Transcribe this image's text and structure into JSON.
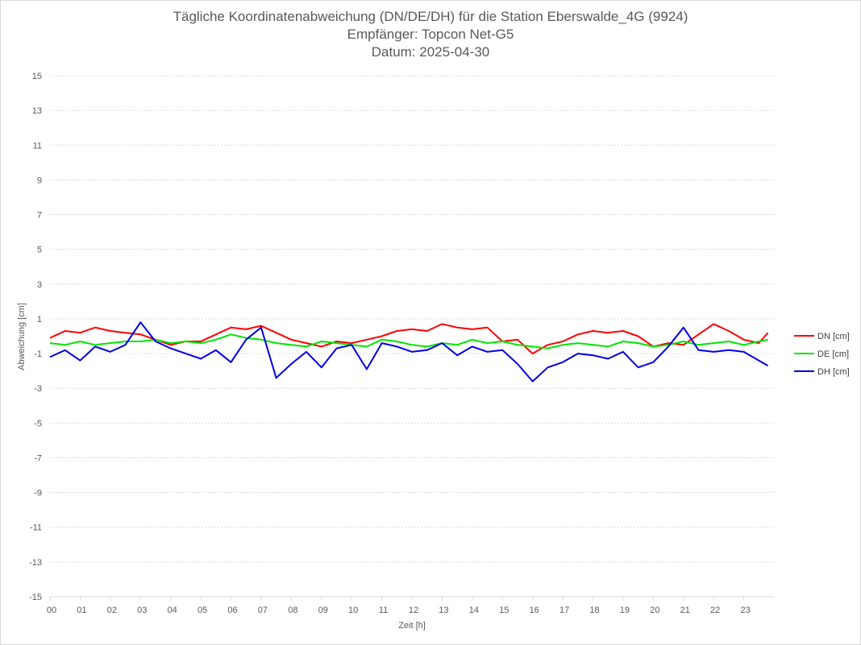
{
  "chart_data": {
    "type": "line",
    "title": "Tägliche Koordinatenabweichung (DN/DE/DH) für die Station Eberswalde_4G (9924)",
    "subtitle_lines": [
      "Empfänger: Topcon Net-G5",
      "Datum: 2025-04-30"
    ],
    "xlabel": "Zeit [h]",
    "ylabel": "Abweichung [cm]",
    "ylim": [
      -15,
      15
    ],
    "xlim": [
      0,
      24
    ],
    "grid": "horizontal dotted",
    "legend_position": "right",
    "x_tick_labels": [
      "00",
      "01",
      "02",
      "03",
      "04",
      "05",
      "06",
      "07",
      "08",
      "09",
      "10",
      "11",
      "12",
      "13",
      "14",
      "15",
      "16",
      "17",
      "18",
      "19",
      "20",
      "21",
      "22",
      "23"
    ],
    "y_tick_labels": [
      "15",
      "13",
      "11",
      "9",
      "7",
      "5",
      "3",
      "1",
      "-1",
      "-3",
      "-5",
      "-7",
      "-9",
      "-11",
      "-13",
      "-15"
    ],
    "series": [
      {
        "name": "DN [cm]",
        "color": "#ff0000",
        "x": [
          0,
          0.5,
          1,
          1.5,
          2,
          2.5,
          3,
          3.5,
          4,
          4.5,
          5,
          5.5,
          6,
          6.5,
          7,
          7.5,
          8,
          8.5,
          9,
          9.5,
          10,
          10.5,
          11,
          11.5,
          12,
          12.5,
          13,
          13.5,
          14,
          14.5,
          15,
          15.5,
          16,
          16.5,
          17,
          17.5,
          18,
          18.5,
          19,
          19.5,
          20,
          20.5,
          21,
          21.5,
          22,
          22.5,
          23,
          23.5,
          23.8
        ],
        "values": [
          -0.1,
          0.3,
          0.2,
          0.5,
          0.3,
          0.2,
          0.1,
          -0.2,
          -0.5,
          -0.3,
          -0.3,
          0.1,
          0.5,
          0.4,
          0.6,
          0.2,
          -0.2,
          -0.4,
          -0.6,
          -0.3,
          -0.4,
          -0.2,
          0.0,
          0.3,
          0.4,
          0.3,
          0.7,
          0.5,
          0.4,
          0.5,
          -0.3,
          -0.2,
          -1.0,
          -0.5,
          -0.3,
          0.1,
          0.3,
          0.2,
          0.3,
          0.0,
          -0.6,
          -0.4,
          -0.5,
          0.1,
          0.7,
          0.3,
          -0.2,
          -0.4,
          0.2
        ]
      },
      {
        "name": "DE [cm]",
        "color": "#00e600",
        "x": [
          0,
          0.5,
          1,
          1.5,
          2,
          2.5,
          3,
          3.5,
          4,
          4.5,
          5,
          5.5,
          6,
          6.5,
          7,
          7.5,
          8,
          8.5,
          9,
          9.5,
          10,
          10.5,
          11,
          11.5,
          12,
          12.5,
          13,
          13.5,
          14,
          14.5,
          15,
          15.5,
          16,
          16.5,
          17,
          17.5,
          18,
          18.5,
          19,
          19.5,
          20,
          20.5,
          21,
          21.5,
          22,
          22.5,
          23,
          23.5,
          23.8
        ],
        "values": [
          -0.4,
          -0.5,
          -0.3,
          -0.5,
          -0.4,
          -0.3,
          -0.3,
          -0.2,
          -0.4,
          -0.3,
          -0.4,
          -0.2,
          0.1,
          -0.1,
          -0.2,
          -0.4,
          -0.5,
          -0.6,
          -0.3,
          -0.4,
          -0.5,
          -0.6,
          -0.2,
          -0.3,
          -0.5,
          -0.6,
          -0.4,
          -0.5,
          -0.2,
          -0.4,
          -0.3,
          -0.5,
          -0.6,
          -0.7,
          -0.5,
          -0.4,
          -0.5,
          -0.6,
          -0.3,
          -0.4,
          -0.6,
          -0.5,
          -0.3,
          -0.5,
          -0.4,
          -0.3,
          -0.5,
          -0.3,
          -0.2
        ]
      },
      {
        "name": "DH [cm]",
        "color": "#0000e6",
        "x": [
          0,
          0.5,
          1,
          1.5,
          2,
          2.5,
          3,
          3.5,
          4,
          4.5,
          5,
          5.5,
          6,
          6.5,
          7,
          7.5,
          8,
          8.5,
          9,
          9.5,
          10,
          10.5,
          11,
          11.5,
          12,
          12.5,
          13,
          13.5,
          14,
          14.5,
          15,
          15.5,
          16,
          16.5,
          17,
          17.5,
          18,
          18.5,
          19,
          19.5,
          20,
          20.5,
          21,
          21.5,
          22,
          22.5,
          23,
          23.5,
          23.8
        ],
        "values": [
          -1.2,
          -0.8,
          -1.4,
          -0.6,
          -0.9,
          -0.5,
          0.8,
          -0.3,
          -0.7,
          -1.0,
          -1.3,
          -0.8,
          -1.5,
          -0.2,
          0.5,
          -2.4,
          -1.6,
          -0.9,
          -1.8,
          -0.7,
          -0.5,
          -1.9,
          -0.4,
          -0.6,
          -0.9,
          -0.8,
          -0.4,
          -1.1,
          -0.6,
          -0.9,
          -0.8,
          -1.6,
          -2.6,
          -1.8,
          -1.5,
          -1.0,
          -1.1,
          -1.3,
          -0.9,
          -1.8,
          -1.5,
          -0.6,
          0.5,
          -0.8,
          -0.9,
          -0.8,
          -0.9,
          -1.4,
          -1.7
        ]
      }
    ]
  }
}
